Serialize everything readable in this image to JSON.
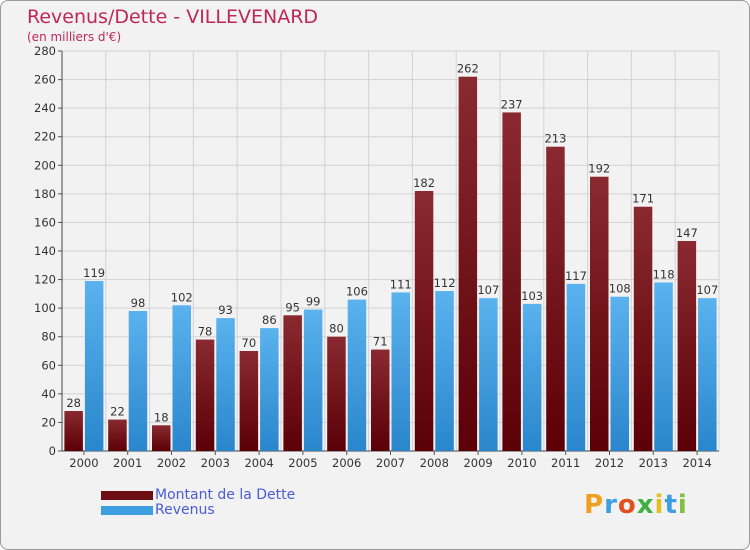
{
  "header": {
    "title": "Revenus/Dette - VILLEVENARD",
    "subtitle": "(en milliers d'€)"
  },
  "legend": {
    "items": [
      {
        "label": "Montant de la Dette",
        "color": "#6e0f14"
      },
      {
        "label": "Revenus",
        "color": "#3d9ee0"
      }
    ]
  },
  "logo": {
    "text": "Proxiti",
    "letters": [
      "P",
      "r",
      "o",
      "x",
      "i",
      "t",
      "i"
    ],
    "colors": [
      "#f0a020",
      "#3d9ee0",
      "#e05020",
      "#3db040",
      "#e0c020",
      "#3d9ee0",
      "#80c040"
    ]
  },
  "chart_data": {
    "type": "bar",
    "title": "Revenus/Dette - VILLEVENARD",
    "subtitle": "(en milliers d'€)",
    "categories": [
      "2000",
      "2001",
      "2002",
      "2003",
      "2004",
      "2005",
      "2006",
      "2007",
      "2008",
      "2009",
      "2010",
      "2011",
      "2012",
      "2013",
      "2014"
    ],
    "series": [
      {
        "name": "Montant de la Dette",
        "color": "#6e0f14",
        "values": [
          28,
          22,
          18,
          78,
          70,
          95,
          80,
          71,
          182,
          262,
          237,
          213,
          192,
          171,
          147
        ]
      },
      {
        "name": "Revenus",
        "color": "#3d9ee0",
        "values": [
          119,
          98,
          102,
          93,
          86,
          99,
          106,
          111,
          112,
          107,
          103,
          117,
          108,
          118,
          107
        ]
      }
    ],
    "ylim": [
      0,
      280
    ],
    "yticks": [
      0,
      20,
      40,
      60,
      80,
      100,
      120,
      140,
      160,
      180,
      200,
      220,
      240,
      260,
      280
    ],
    "grid": true,
    "legend_position": "bottom-left"
  }
}
